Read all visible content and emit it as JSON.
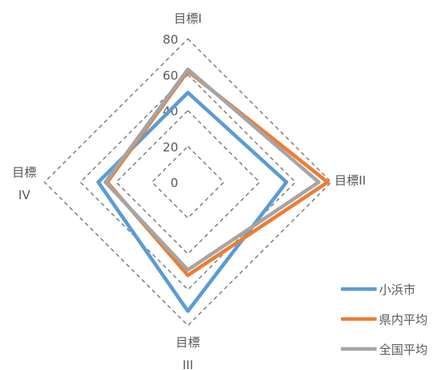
{
  "chart_data": {
    "type": "radar",
    "axes": [
      {
        "label_lines": [
          "目標I"
        ]
      },
      {
        "label_lines": [
          "目標II"
        ]
      },
      {
        "label_lines": [
          "目標",
          "III"
        ]
      },
      {
        "label_lines": [
          "目標",
          "IV"
        ]
      }
    ],
    "categories": [
      "目標I",
      "目標II",
      "目標III",
      "目標IV"
    ],
    "rlim": [
      0,
      80
    ],
    "ticks": [
      0,
      20,
      40,
      60,
      80
    ],
    "grid": true,
    "legend_position": "bottom-right",
    "series": [
      {
        "name": "小浜市",
        "values": [
          50,
          55,
          72,
          50
        ],
        "color": "#5B9BD5"
      },
      {
        "name": "県内平均",
        "values": [
          62,
          78,
          52,
          45
        ],
        "color": "#ED7D31"
      },
      {
        "name": "全国平均",
        "values": [
          63,
          73,
          49,
          46
        ],
        "color": "#A5A5A5"
      }
    ],
    "grid_color": "#808080",
    "text_color": "#595959"
  }
}
